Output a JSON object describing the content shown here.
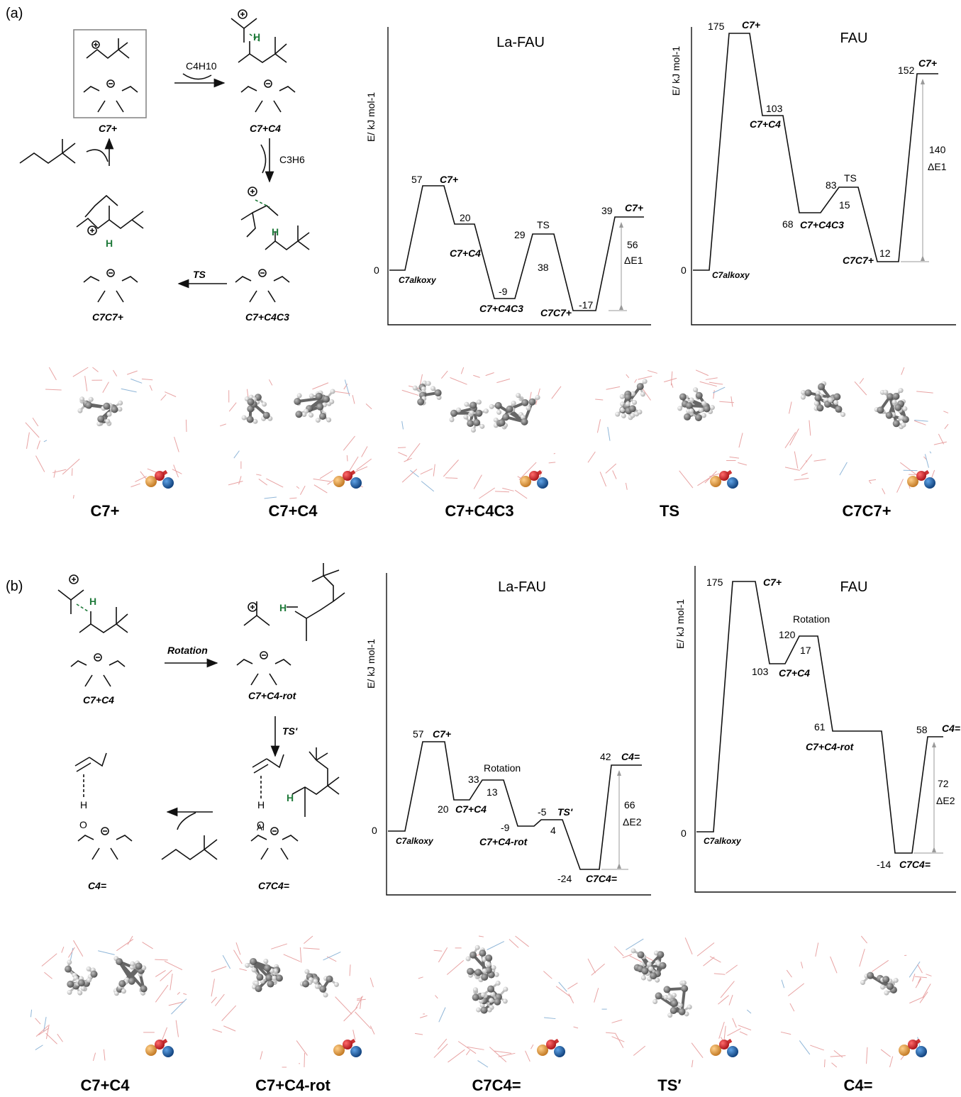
{
  "panels": {
    "a": {
      "tag": "(a)",
      "scheme": {
        "box_label": "C7+",
        "c4h10": "C4H10",
        "c3h6": "C3H6",
        "ts": "TS",
        "state_labels": [
          "C7+",
          "C7+C4",
          "C7+C4C3",
          "C7C7+"
        ]
      },
      "la_fau": {
        "title": "La-FAU",
        "ylabel": "E/ kJ mol-1",
        "zero": "0",
        "energies": [
          "57",
          "20",
          "-9",
          "29",
          "-17",
          "39"
        ],
        "states": [
          "C7alkoxy",
          "C7+",
          "C7+C4",
          "C7+C4C3",
          "TS",
          "C7C7+",
          "C7+"
        ],
        "barrier": "38",
        "delta": "56",
        "delta_label": "ΔE1"
      },
      "fau": {
        "title": "FAU",
        "ylabel": "E/ kJ mol-1",
        "zero": "0",
        "energies": [
          "175",
          "103",
          "68",
          "83",
          "12",
          "152"
        ],
        "states": [
          "C7alkoxy",
          "C7+",
          "C7+C4",
          "C7+C4C3",
          "TS",
          "C7C7+",
          "C7+"
        ],
        "barrier": "15",
        "delta": "140",
        "delta_label": "ΔE1"
      },
      "captions": [
        "C7+",
        "C7+C4",
        "C7+C4C3",
        "TS",
        "C7C7+"
      ]
    },
    "b": {
      "tag": "(b)",
      "scheme": {
        "rotation": "Rotation",
        "ts_prime": "TS'",
        "state_labels": [
          "C7+C4",
          "C7+C4-rot",
          "C7C4=",
          "C4="
        ]
      },
      "la_fau": {
        "title": "La-FAU",
        "ylabel": "E/ kJ mol-1",
        "zero": "0",
        "energies": [
          "57",
          "20",
          "33",
          "-9",
          "-5",
          "-24",
          "42"
        ],
        "states": [
          "C7alkoxy",
          "C7+",
          "C7+C4",
          "Rotation",
          "C7+C4-rot",
          "TS'",
          "C7C4=",
          "C4="
        ],
        "barrier_rot": "13",
        "barrier_ts": "4",
        "delta": "66",
        "delta_label": "ΔE2"
      },
      "fau": {
        "title": "FAU",
        "ylabel": "E/ kJ mol-1",
        "zero": "0",
        "energies": [
          "175",
          "103",
          "120",
          "61",
          "-14",
          "58"
        ],
        "states": [
          "C7alkoxy",
          "C7+",
          "C7+C4",
          "Rotation",
          "C7+C4-rot",
          "C7C4=",
          "C4="
        ],
        "barrier_rot": "17",
        "delta": "72",
        "delta_label": "ΔE2"
      },
      "captions": [
        "C7+C4",
        "C7+C4-rot",
        "C7C4=",
        "TS′",
        "C4="
      ]
    }
  },
  "colors": {
    "line": "#111111",
    "hydrogen_green": "#1f7a3a",
    "carbon": "#6b6b6b",
    "h_atom": "#d4d4d4",
    "framework_red": "#e8a3a3",
    "framework_blue": "#8fb6d8",
    "oxygen_red": "#d7191c",
    "al_blue": "#1f5fa8",
    "si_orange": "#e6a04a",
    "arrow_grey": "#9a9a9a"
  }
}
